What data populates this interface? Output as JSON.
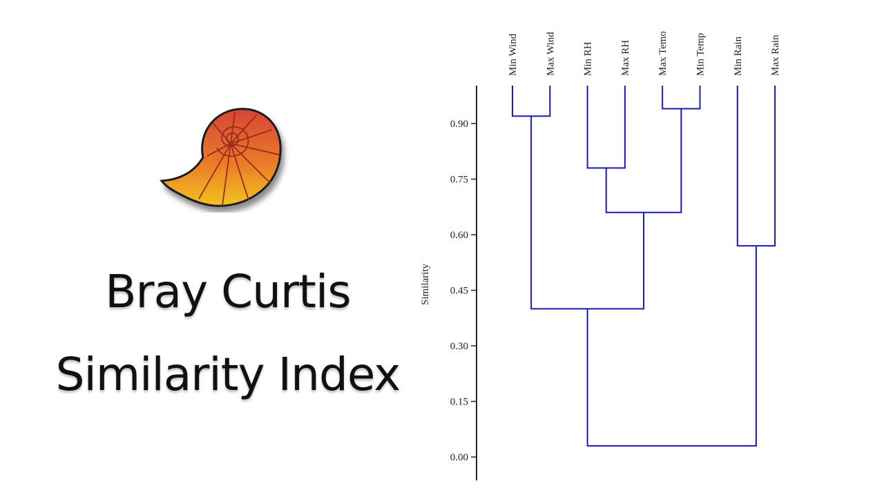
{
  "title": {
    "line1": "Bray Curtis",
    "line2": "Similarity Index"
  },
  "logo": {
    "icon": "nautilus-shell-icon",
    "colors": {
      "top": "#d64535",
      "bottom": "#f2c31f",
      "ribs": "#9c2a1d",
      "outline": "#1a1a1a"
    }
  },
  "chart_data": {
    "type": "dendrogram",
    "ylabel": "Similarity",
    "ylim": [
      0.0,
      1.0
    ],
    "yticks": [
      "0.00",
      "0.15",
      "0.30",
      "0.45",
      "0.60",
      "0.75",
      "0.90"
    ],
    "line_color": "#1a1ab8",
    "leaves": [
      "Min Wind",
      "Max Wind",
      "Min RH",
      "Max RH",
      "Max Temo",
      "Min Temp",
      "Min Rain",
      "Max Rain"
    ],
    "merges": [
      {
        "left": "Min Wind",
        "right": "Max Wind",
        "similarity": 0.92
      },
      {
        "left": "Max Temo",
        "right": "Min Temp",
        "similarity": 0.94
      },
      {
        "left": "Min RH",
        "right": "Max RH",
        "similarity": 0.78
      },
      {
        "left": "Min RH + Max RH",
        "right": "Max Temo + Min Temp",
        "similarity": 0.66
      },
      {
        "left": "Min Rain",
        "right": "Max Rain",
        "similarity": 0.57
      },
      {
        "left": "Min Wind + Max Wind",
        "right": "Min RH + Max RH + Max Temo + Min Temp",
        "similarity": 0.4
      },
      {
        "left": "Wind + RH + Temp",
        "right": "Rain",
        "similarity": 0.03
      }
    ]
  }
}
